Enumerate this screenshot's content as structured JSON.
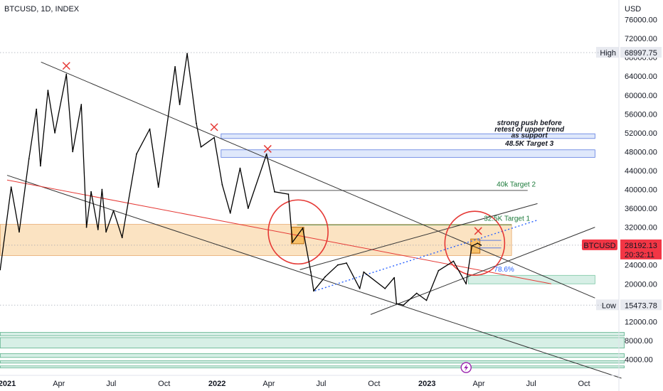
{
  "header": {
    "symbol_title": "BTCUSD, 1D, INDEX",
    "currency": "USD"
  },
  "chart_data": {
    "type": "line",
    "title": "BTCUSD, 1D, INDEX",
    "ylabel": "USD",
    "ylim": [
      0,
      80000
    ],
    "y_ticks": [
      4000,
      8000,
      12000,
      16000,
      20000,
      24000,
      28000,
      32000,
      36000,
      40000,
      44000,
      48000,
      52000,
      56000,
      60000,
      64000,
      68000,
      72000,
      76000
    ],
    "y_tick_labels": [
      "4000.00",
      "8000.00",
      "12000.00",
      "16000.00",
      "20000.00",
      "24000.00",
      "28000.00",
      "32000.00",
      "36000.00",
      "40000.00",
      "44000.00",
      "48000.00",
      "52000.00",
      "56000.00",
      "60000.00",
      "64000.00",
      "68000.00",
      "72000.00",
      "76000.00"
    ],
    "x_ticks": [
      {
        "date": "2021-01-01",
        "label": "2021"
      },
      {
        "date": "2021-04-01",
        "label": "Apr"
      },
      {
        "date": "2021-07-01",
        "label": "Jul"
      },
      {
        "date": "2021-10-01",
        "label": "Oct"
      },
      {
        "date": "2022-01-01",
        "label": "2022"
      },
      {
        "date": "2022-04-01",
        "label": "Apr"
      },
      {
        "date": "2022-07-01",
        "label": "Jul"
      },
      {
        "date": "2022-10-01",
        "label": "Oct"
      },
      {
        "date": "2023-01-01",
        "label": "2023"
      },
      {
        "date": "2023-04-01",
        "label": "Apr"
      },
      {
        "date": "2023-07-01",
        "label": "Jul"
      },
      {
        "date": "2023-10-01",
        "label": "Oct"
      }
    ],
    "series": [
      {
        "values": [
          [
            "2020-12-20",
            23000
          ],
          [
            "2021-01-08",
            40500
          ],
          [
            "2021-01-22",
            31000
          ],
          [
            "2021-02-08",
            46500
          ],
          [
            "2021-02-21",
            57000
          ],
          [
            "2021-02-28",
            45000
          ],
          [
            "2021-03-13",
            61000
          ],
          [
            "2021-03-25",
            52000
          ],
          [
            "2021-04-14",
            64400
          ],
          [
            "2021-04-25",
            48000
          ],
          [
            "2021-05-10",
            58000
          ],
          [
            "2021-05-19",
            32000
          ],
          [
            "2021-05-27",
            39500
          ],
          [
            "2021-06-08",
            31500
          ],
          [
            "2021-06-15",
            40000
          ],
          [
            "2021-06-22",
            31000
          ],
          [
            "2021-07-05",
            35500
          ],
          [
            "2021-07-20",
            29800
          ],
          [
            "2021-08-14",
            47500
          ],
          [
            "2021-09-06",
            52800
          ],
          [
            "2021-09-21",
            40500
          ],
          [
            "2021-10-20",
            66000
          ],
          [
            "2021-10-28",
            58000
          ],
          [
            "2021-11-10",
            68800
          ],
          [
            "2021-11-26",
            54000
          ],
          [
            "2021-12-04",
            49000
          ],
          [
            "2021-12-27",
            51000
          ],
          [
            "2022-01-10",
            41000
          ],
          [
            "2022-01-24",
            35000
          ],
          [
            "2022-02-10",
            44500
          ],
          [
            "2022-02-24",
            36000
          ],
          [
            "2022-03-28",
            47500
          ],
          [
            "2022-04-11",
            39500
          ],
          [
            "2022-05-05",
            39000
          ],
          [
            "2022-05-12",
            28800
          ],
          [
            "2022-05-30",
            31800
          ],
          [
            "2022-06-13",
            22500
          ],
          [
            "2022-06-18",
            18500
          ],
          [
            "2022-07-08",
            21500
          ],
          [
            "2022-07-30",
            24000
          ],
          [
            "2022-08-14",
            24400
          ],
          [
            "2022-09-06",
            19000
          ],
          [
            "2022-09-13",
            22500
          ],
          [
            "2022-10-20",
            19000
          ],
          [
            "2022-11-05",
            21300
          ],
          [
            "2022-11-09",
            15800
          ],
          [
            "2022-11-21",
            15500
          ],
          [
            "2022-12-14",
            18000
          ],
          [
            "2022-12-31",
            16500
          ],
          [
            "2023-01-21",
            22800
          ],
          [
            "2023-02-16",
            24800
          ],
          [
            "2023-03-10",
            20000
          ],
          [
            "2023-03-20",
            28000
          ],
          [
            "2023-03-30",
            28600
          ],
          [
            "2023-04-05",
            28192
          ]
        ]
      }
    ],
    "price_badge": {
      "symbol": "BTCUSD",
      "price": "28192.13",
      "countdown": "20:32:11"
    },
    "high_marker": {
      "label": "High",
      "value": "68997.75",
      "price": 68997.75
    },
    "low_marker": {
      "label": "Low",
      "value": "15473.78",
      "price": 15473.78
    },
    "annotations": {
      "strong_push_line1": "strong push before",
      "strong_push_line2": "retest of upper trend",
      "strong_push_line3": "as support",
      "target3": "48.5K Target 3",
      "target2": "40k Target 2",
      "target1": "32.5K Target 1",
      "fib": "78.6%"
    },
    "grid": false,
    "colors": {
      "candles": "#000000",
      "orange_zone": "#fbe3c2",
      "blue_zone": "#dfe8fb",
      "green_zone": "#d7efe6",
      "red": "#e53935",
      "blue_dotted": "#2962ff",
      "target_green": "#1b7a3a",
      "price_badge": "#f23645"
    }
  }
}
